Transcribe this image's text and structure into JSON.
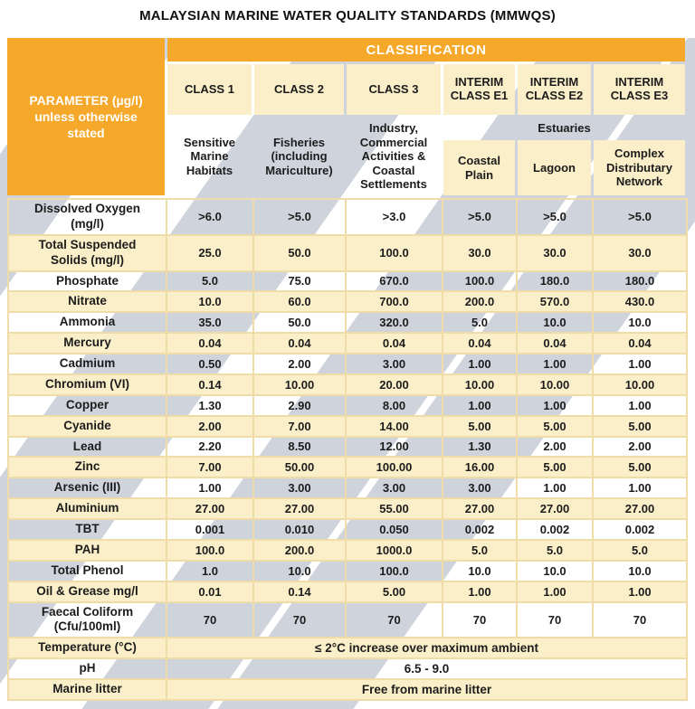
{
  "title": "MALAYSIAN MARINE WATER QUALITY STANDARDS (MMWQS)",
  "colors": {
    "header_orange": "#F5A829",
    "row_cream": "#FBEFC9",
    "grid_gold": "#F0DCA8",
    "watermark_gray": "#CFD3DB",
    "text": "#1c1c1c"
  },
  "header": {
    "classification_label": "CLASSIFICATION",
    "parameter_label": "PARAMETER (µg/l) unless otherwise stated",
    "estuaries_label": "Estuaries",
    "columns": [
      {
        "class_label": "CLASS 1",
        "description": "Sensitive Marine Habitats"
      },
      {
        "class_label": "CLASS 2",
        "description": "Fisheries (including Mariculture)"
      },
      {
        "class_label": "CLASS 3",
        "description": "Industry, Commercial Activities & Coastal Settlements"
      },
      {
        "class_label": "INTERIM CLASS E1",
        "description": "Coastal Plain"
      },
      {
        "class_label": "INTERIM CLASS E2",
        "description": "Lagoon"
      },
      {
        "class_label": "INTERIM CLASS E3",
        "description": "Complex Distributary Network"
      }
    ]
  },
  "rows": [
    {
      "parameter": "Dissolved Oxygen (mg/l)",
      "values": [
        ">6.0",
        ">5.0",
        ">3.0",
        ">5.0",
        ">5.0",
        ">5.0"
      ]
    },
    {
      "parameter": "Total Suspended Solids (mg/l)",
      "values": [
        "25.0",
        "50.0",
        "100.0",
        "30.0",
        "30.0",
        "30.0"
      ]
    },
    {
      "parameter": "Phosphate",
      "values": [
        "5.0",
        "75.0",
        "670.0",
        "100.0",
        "180.0",
        "180.0"
      ]
    },
    {
      "parameter": "Nitrate",
      "values": [
        "10.0",
        "60.0",
        "700.0",
        "200.0",
        "570.0",
        "430.0"
      ]
    },
    {
      "parameter": "Ammonia",
      "values": [
        "35.0",
        "50.0",
        "320.0",
        "5.0",
        "10.0",
        "10.0"
      ]
    },
    {
      "parameter": "Mercury",
      "values": [
        "0.04",
        "0.04",
        "0.04",
        "0.04",
        "0.04",
        "0.04"
      ]
    },
    {
      "parameter": "Cadmium",
      "values": [
        "0.50",
        "2.00",
        "3.00",
        "1.00",
        "1.00",
        "1.00"
      ]
    },
    {
      "parameter": "Chromium (VI)",
      "values": [
        "0.14",
        "10.00",
        "20.00",
        "10.00",
        "10.00",
        "10.00"
      ]
    },
    {
      "parameter": "Copper",
      "values": [
        "1.30",
        "2.90",
        "8.00",
        "1.00",
        "1.00",
        "1.00"
      ]
    },
    {
      "parameter": "Cyanide",
      "values": [
        "2.00",
        "7.00",
        "14.00",
        "5.00",
        "5.00",
        "5.00"
      ]
    },
    {
      "parameter": "Lead",
      "values": [
        "2.20",
        "8.50",
        "12.00",
        "1.30",
        "2.00",
        "2.00"
      ]
    },
    {
      "parameter": "Zinc",
      "values": [
        "7.00",
        "50.00",
        "100.00",
        "16.00",
        "5.00",
        "5.00"
      ]
    },
    {
      "parameter": "Arsenic (III)",
      "values": [
        "1.00",
        "3.00",
        "3.00",
        "3.00",
        "1.00",
        "1.00"
      ]
    },
    {
      "parameter": "Aluminium",
      "values": [
        "27.00",
        "27.00",
        "55.00",
        "27.00",
        "27.00",
        "27.00"
      ]
    },
    {
      "parameter": "TBT",
      "values": [
        "0.001",
        "0.010",
        "0.050",
        "0.002",
        "0.002",
        "0.002"
      ]
    },
    {
      "parameter": "PAH",
      "values": [
        "100.0",
        "200.0",
        "1000.0",
        "5.0",
        "5.0",
        "5.0"
      ]
    },
    {
      "parameter": "Total Phenol",
      "values": [
        "1.0",
        "10.0",
        "100.0",
        "10.0",
        "10.0",
        "10.0"
      ]
    },
    {
      "parameter": "Oil & Grease mg/l",
      "values": [
        "0.01",
        "0.14",
        "5.00",
        "1.00",
        "1.00",
        "1.00"
      ]
    },
    {
      "parameter": "Faecal Coliform (Cfu/100ml)",
      "values": [
        "70",
        "70",
        "70",
        "70",
        "70",
        "70"
      ]
    },
    {
      "parameter": "Temperature (°C)",
      "span": "≤ 2°C increase over maximum ambient"
    },
    {
      "parameter": "pH",
      "span": "6.5 - 9.0"
    },
    {
      "parameter": "Marine litter",
      "span": "Free from marine litter"
    }
  ]
}
